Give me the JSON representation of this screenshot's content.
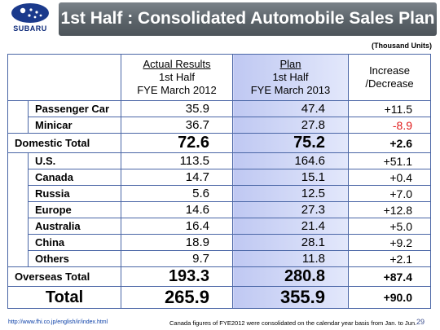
{
  "logo": {
    "brand": "SUBARU"
  },
  "header": {
    "title": "1st Half : Consolidated Automobile Sales Plan"
  },
  "units": "(Thousand Units)",
  "columns": {
    "actual": {
      "line1": "Actual Results",
      "line2": "1st Half",
      "line3": "FYE March 2012"
    },
    "plan": {
      "line1": "Plan",
      "line2": "1st Half",
      "line3": "FYE March 2013"
    },
    "increase": {
      "line1": "Increase",
      "line2": "/Decrease"
    }
  },
  "domestic": [
    {
      "label": "Passenger Car",
      "actual": "35.9",
      "plan": "47.4",
      "increase": "+11.5"
    },
    {
      "label": "Minicar",
      "actual": "36.7",
      "plan": "27.8",
      "increase": "-8.9"
    }
  ],
  "domestic_total": {
    "label": "Domestic Total",
    "actual": "72.6",
    "plan": "75.2",
    "increase": "+2.6"
  },
  "overseas": [
    {
      "label": "U.S.",
      "actual": "113.5",
      "plan": "164.6",
      "increase": "+51.1"
    },
    {
      "label": "Canada",
      "actual": "14.7",
      "plan": "15.1",
      "increase": "+0.4"
    },
    {
      "label": "Russia",
      "actual": "5.6",
      "plan": "12.5",
      "increase": "+7.0"
    },
    {
      "label": "Europe",
      "actual": "14.6",
      "plan": "27.3",
      "increase": "+12.8"
    },
    {
      "label": "Australia",
      "actual": "16.4",
      "plan": "21.4",
      "increase": "+5.0"
    },
    {
      "label": "China",
      "actual": "18.9",
      "plan": "28.1",
      "increase": "+9.2"
    },
    {
      "label": "Others",
      "actual": "9.7",
      "plan": "11.8",
      "increase": "+2.1"
    }
  ],
  "overseas_total": {
    "label": "Overseas Total",
    "actual": "193.3",
    "plan": "280.8",
    "increase": "+87.4"
  },
  "total": {
    "label": "Total",
    "actual": "265.9",
    "plan": "355.9",
    "increase": "+90.0"
  },
  "footer": {
    "link": "http://www.fhi.co.jp/english/ir/index.html",
    "note": "Canada figures of FYE2012 were consolidated on the calendar year basis from Jan. to Jun.",
    "page": "29"
  },
  "colors": {
    "title_bar": "#5b6369",
    "plan_column": "#c9d1f4",
    "border": "#4a66a6",
    "negative": "#e01c1c"
  }
}
